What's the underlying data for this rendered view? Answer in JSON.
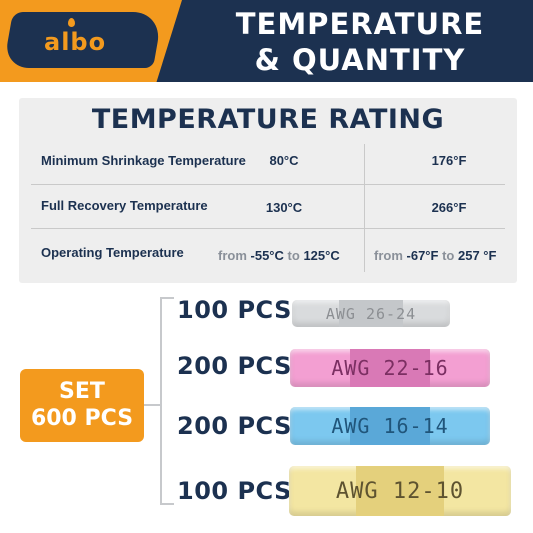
{
  "header": {
    "logo_text": "albo",
    "title_line1": "TEMPERATURE",
    "title_line2": "& QUANTITY"
  },
  "rating": {
    "title": "TEMPERATURE RATING",
    "rows": [
      {
        "label": "Minimum Shrinkage Temperature",
        "celsius": "80°C",
        "fahrenheit": "176°F"
      },
      {
        "label": "Full Recovery Temperature",
        "celsius": "130°C",
        "fahrenheit": "266°F"
      },
      {
        "label": "Operating Temperature",
        "celsius_range": {
          "from_word": "from",
          "from": "-55°C",
          "to_word": "to",
          "to": "125°C"
        },
        "fahrenheit_range": {
          "from_word": "from",
          "from": "-67°F",
          "to_word": "to",
          "to": "257 °F"
        }
      }
    ]
  },
  "set": {
    "line1": "SET",
    "line2": "600 PCS"
  },
  "items": [
    {
      "qty": "100 PCS",
      "awg": "AWG 26-24",
      "color": "#d9dbdd",
      "band": "#c4c7ca",
      "text_color": "#8c8f93"
    },
    {
      "qty": "200 PCS",
      "awg": "AWG 22-16",
      "color": "#f39fd2",
      "band": "#d979b6",
      "text_color": "#7b2f62"
    },
    {
      "qty": "200 PCS",
      "awg": "AWG 16-14",
      "color": "#7cc8ef",
      "band": "#5aa8d8",
      "text_color": "#20557a"
    },
    {
      "qty": "100 PCS",
      "awg": "AWG 12-10",
      "color": "#f3e6a2",
      "band": "#e4d07c",
      "text_color": "#5e5330"
    }
  ]
}
